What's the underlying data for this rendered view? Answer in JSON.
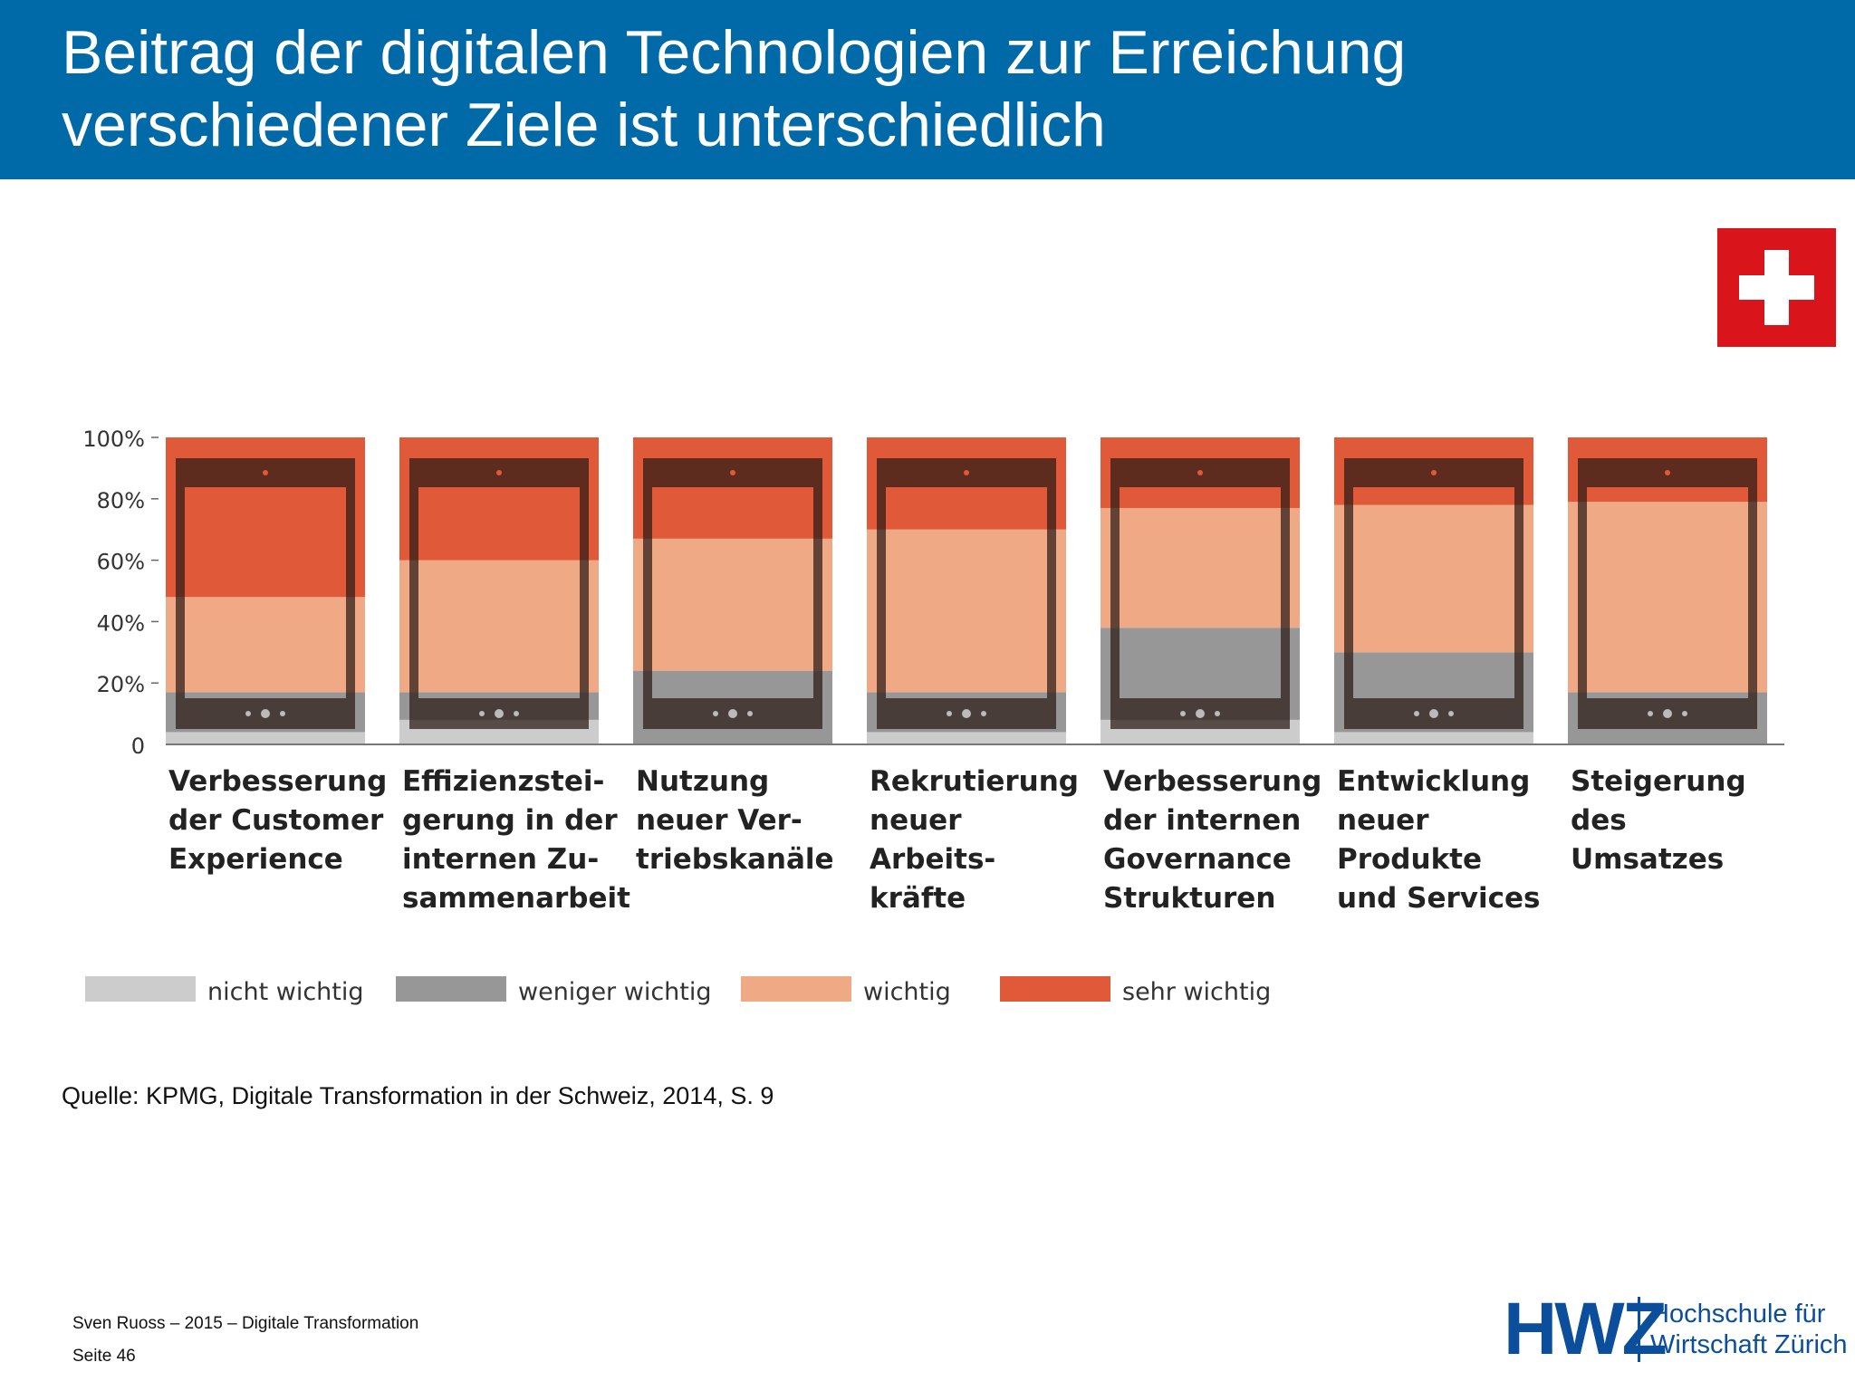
{
  "header": {
    "title_line1": "Beitrag der digitalen Technologien zur Erreichung",
    "title_line2": "verschiedener Ziele ist unterschiedlich"
  },
  "colors": {
    "header_bg": "#0069a8",
    "nicht_wichtig": "#cccccc",
    "weniger_wichtig": "#979797",
    "wichtig": "#efaa85",
    "sehr_wichtig": "#e05a3a",
    "tablet_frame": "#2a1a15",
    "flag_red": "#d9141b",
    "logo_blue": "#0b4e9b"
  },
  "chart_data": {
    "type": "bar",
    "stacked": true,
    "categories": [
      "Verbesserung der Customer Experience",
      "Effizienzsteigerung in der internen Zusammenarbeit",
      "Nutzung neuer Vertriebskanäle",
      "Rekrutierung neuer Arbeitskräfte",
      "Verbesserung der internen Governance Strukturen",
      "Entwicklung neuer Produkte und Services",
      "Steigerung des Umsatzes"
    ],
    "category_labels": [
      "Verbesserung\nder Customer\nExperience",
      "Effizienzstei-\ngerung in der\ninternen Zu-\nsammenarbeit",
      "Nutzung\nneuer Ver-\ntriebskanäle",
      "Rekrutierung\nneuer Arbeits-\nkräfte",
      "Verbesserung\nder internen\nGovernance\nStrukturen",
      "Entwicklung\nneuer Produkte\nund Services",
      "Steigerung\ndes Umsatzes"
    ],
    "series": [
      {
        "name": "nicht wichtig",
        "values": [
          4,
          8,
          0,
          4,
          8,
          4,
          0
        ]
      },
      {
        "name": "weniger wichtig",
        "values": [
          13,
          9,
          24,
          13,
          30,
          26,
          17
        ]
      },
      {
        "name": "wichtig",
        "values": [
          31,
          43,
          43,
          53,
          39,
          48,
          62
        ]
      },
      {
        "name": "sehr wichtig",
        "values": [
          52,
          40,
          33,
          30,
          23,
          22,
          21
        ]
      }
    ],
    "y_ticks": [
      "0",
      "20%",
      "40%",
      "60%",
      "80%",
      "100%"
    ],
    "ylim": [
      0,
      100
    ],
    "legend_position": "bottom"
  },
  "source": "Quelle: KPMG, Digitale Transformation in der Schweiz, 2014, S. 9",
  "footer": {
    "author_line": "Sven Ruoss – 2015 – Digitale Transformation",
    "page_line": "Seite 46"
  },
  "logo": {
    "name": "HWZ",
    "line1": "Hochschule für",
    "line2": "Wirtschaft Zürich"
  }
}
